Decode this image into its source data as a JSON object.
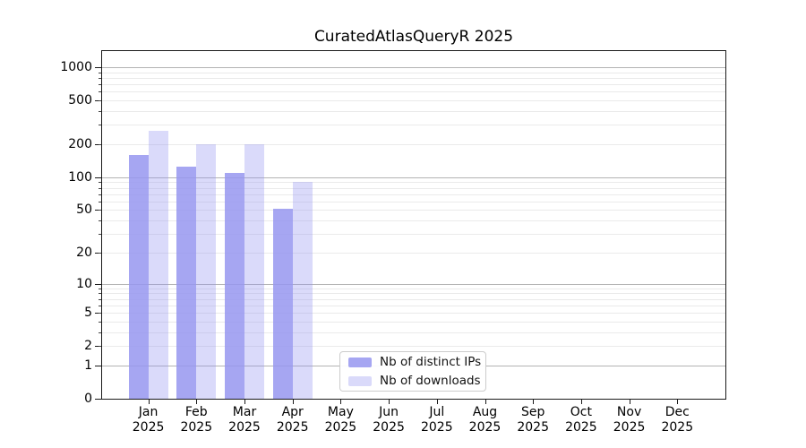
{
  "figure": {
    "background": "#ffffff",
    "spine_color": "#1a1a1a"
  },
  "chart_data": {
    "type": "bar",
    "title": "CuratedAtlasQueryR 2025",
    "xlabel": "",
    "ylabel": "",
    "y_scale": "log1p",
    "ylim": [
      0,
      1390
    ],
    "grid": {
      "on": true,
      "major": [
        1,
        10,
        100,
        1000
      ],
      "minor_decades": [
        1,
        10,
        100
      ],
      "minor_multiples": [
        2,
        3,
        4,
        5,
        6,
        7,
        8,
        9
      ],
      "major_color": "#b3b3b3",
      "minor_color": "#eaeaea"
    },
    "y_ticks": [
      [
        0,
        "0"
      ],
      [
        1,
        "1"
      ],
      [
        2,
        "2"
      ],
      [
        5,
        "5"
      ],
      [
        10,
        "10"
      ],
      [
        20,
        "20"
      ],
      [
        50,
        "50"
      ],
      [
        100,
        "100"
      ],
      [
        200,
        "200"
      ],
      [
        500,
        "500"
      ],
      [
        1000,
        "1000"
      ]
    ],
    "categories": [
      [
        "Jan",
        "2025"
      ],
      [
        "Feb",
        "2025"
      ],
      [
        "Mar",
        "2025"
      ],
      [
        "Apr",
        "2025"
      ],
      [
        "May",
        "2025"
      ],
      [
        "Jun",
        "2025"
      ],
      [
        "Jul",
        "2025"
      ],
      [
        "Aug",
        "2025"
      ],
      [
        "Sep",
        "2025"
      ],
      [
        "Oct",
        "2025"
      ],
      [
        "Nov",
        "2025"
      ],
      [
        "Dec",
        "2025"
      ]
    ],
    "series": [
      {
        "name": "Nb of distinct IPs",
        "color": "rgba(150,150,240,0.85)",
        "values": [
          160,
          125,
          110,
          51,
          0,
          0,
          0,
          0,
          0,
          0,
          0,
          0
        ]
      },
      {
        "name": "Nb of downloads",
        "color": "rgba(150,150,240,0.35)",
        "values": [
          265,
          200,
          200,
          90,
          0,
          0,
          0,
          0,
          0,
          0,
          0,
          0
        ]
      }
    ],
    "legend_position": "lower center"
  }
}
